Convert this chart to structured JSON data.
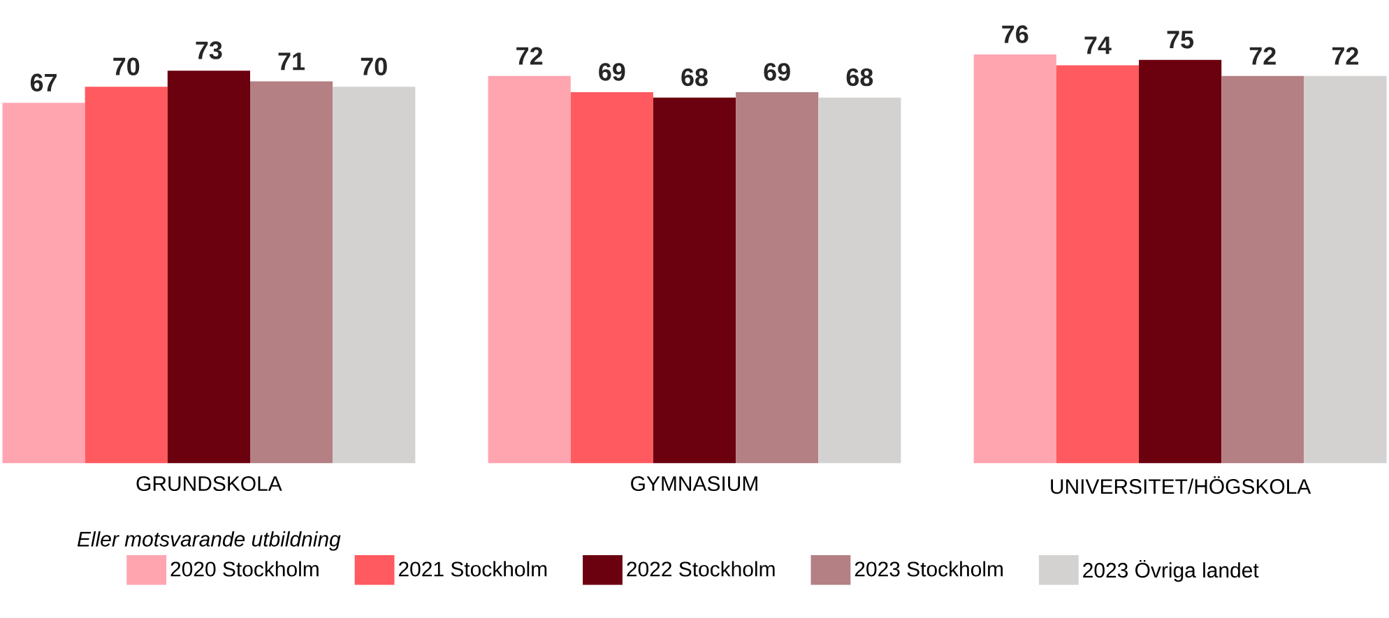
{
  "chart_data": {
    "type": "bar",
    "categories": [
      "GRUNDSKOLA",
      "GYMNASIUM",
      "UNIVERSITET/HÖGSKOLA"
    ],
    "series": [
      {
        "name": "2020 Stockholm",
        "color": "#ffa5b0",
        "values": [
          67,
          72,
          76
        ]
      },
      {
        "name": "2021 Stockholm",
        "color": "#ff5a5f",
        "values": [
          70,
          69,
          74
        ]
      },
      {
        "name": "2022 Stockholm",
        "color": "#6b000f",
        "values": [
          73,
          68,
          75
        ]
      },
      {
        "name": "2023 Stockholm",
        "color": "#b48084",
        "values": [
          71,
          69,
          72
        ]
      },
      {
        "name": "2023 Övriga landet",
        "color": "#d3d2d1",
        "values": [
          70,
          68,
          72
        ]
      }
    ],
    "data_labels": true,
    "legend": "bottom",
    "annotations": [
      "*Eller motsvarande utbildning*"
    ]
  }
}
